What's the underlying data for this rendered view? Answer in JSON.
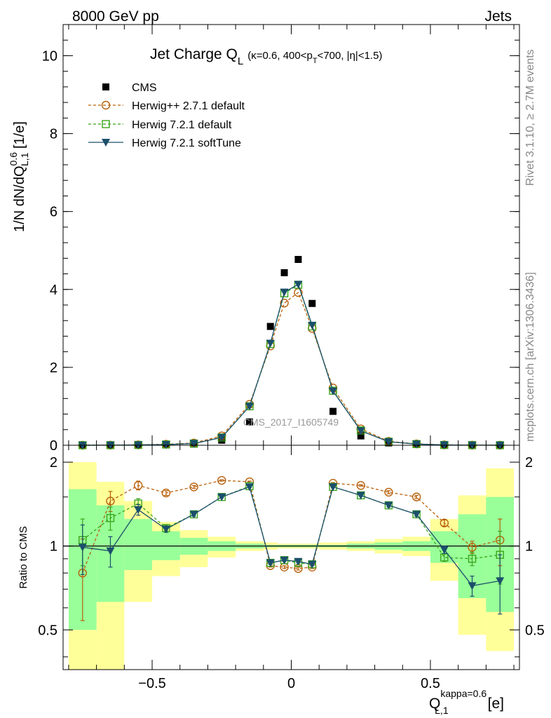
{
  "header": {
    "left": "8000 GeV pp",
    "right": "Jets"
  },
  "side_text": {
    "rivet": "Rivet 3.1.10, ≥ 2.7M events",
    "mcplots": "mcplots.cern.ch [arXiv:1306.3436]"
  },
  "colors": {
    "cms": "#000000",
    "herwigpp": "#b8600b",
    "herwig721": "#3aa41a",
    "softtune": "#1b4f6b",
    "band_yellow": "#ffff99",
    "band_green": "#99ff99"
  },
  "chart_data": [
    {
      "type": "line",
      "title": "Jet Charge Q",
      "title_sub": "L",
      "title_extra": "(κ=0.6, 400<p",
      "title_extra_sub": "T",
      "title_extra_end": "<700, |η|<1.5)",
      "ylabel_main": "1/N dN/dQ",
      "ylabel_sup": "0.6",
      "ylabel_sub": "L,1",
      "ylabel_unit": " [1/e]",
      "watermark": "CMS_2017_I1605749",
      "xlim": [
        -0.82,
        0.82
      ],
      "ylim": [
        0,
        10.8
      ],
      "yticks": [
        0,
        2,
        4,
        6,
        8,
        10
      ],
      "x": [
        -0.75,
        -0.65,
        -0.55,
        -0.45,
        -0.35,
        -0.25,
        -0.15,
        -0.075,
        -0.025,
        0.025,
        0.075,
        0.15,
        0.25,
        0.35,
        0.45,
        0.55,
        0.65,
        0.75
      ],
      "series": [
        {
          "name": "CMS",
          "values": [
            0.001,
            0.002,
            0.006,
            0.014,
            0.03,
            0.13,
            0.6,
            3.05,
            4.43,
            4.77,
            3.64,
            0.87,
            0.24,
            0.06,
            0.022,
            0.008,
            0.003,
            0.001
          ]
        },
        {
          "name": "Herwig++ 2.7.1 default",
          "values": [
            0.0008,
            0.003,
            0.01,
            0.025,
            0.057,
            0.24,
            1.05,
            2.55,
            3.65,
            3.92,
            3.0,
            1.47,
            0.42,
            0.1,
            0.035,
            0.01,
            0.003,
            0.001
          ]
        },
        {
          "name": "Herwig 7.2.1 default",
          "values": [
            0.001,
            0.0026,
            0.0084,
            0.019,
            0.044,
            0.2,
            1.0,
            2.6,
            3.9,
            4.12,
            3.05,
            1.4,
            0.38,
            0.09,
            0.03,
            0.007,
            0.003,
            0.001
          ]
        },
        {
          "name": "Herwig 7.2.1 softTune",
          "values": [
            0.001,
            0.002,
            0.008,
            0.018,
            0.044,
            0.2,
            1.0,
            2.62,
            3.93,
            4.13,
            3.08,
            1.39,
            0.37,
            0.09,
            0.03,
            0.008,
            0.002,
            0.001
          ]
        }
      ]
    },
    {
      "type": "line",
      "ylabel": "Ratio to CMS",
      "xlabel_main": "Q",
      "xlabel_sup": "kappa=0.6",
      "xlabel_sub": "L,1",
      "xlabel_unit": "[e]",
      "xlim": [
        -0.82,
        0.82
      ],
      "ylim": [
        0.36,
        2.3
      ],
      "yticks": [
        0.5,
        1,
        2
      ],
      "xticks": [
        -0.5,
        0,
        0.5
      ],
      "xtick_labels": [
        "−0.5",
        "0",
        "0.5"
      ],
      "bins": [
        -0.8,
        -0.7,
        -0.6,
        -0.5,
        -0.4,
        -0.3,
        -0.2,
        -0.1,
        -0.05,
        0.0,
        0.05,
        0.1,
        0.2,
        0.3,
        0.4,
        0.5,
        0.6,
        0.7,
        0.8
      ],
      "band_yellow": [
        [
          0.36,
          2.0
        ],
        [
          0.36,
          1.7
        ],
        [
          0.63,
          1.45
        ],
        [
          0.78,
          1.22
        ],
        [
          0.84,
          1.14
        ],
        [
          0.91,
          1.08
        ],
        [
          0.96,
          1.04
        ],
        [
          0.97,
          1.03
        ],
        [
          0.98,
          1.02
        ],
        [
          0.98,
          1.02
        ],
        [
          0.98,
          1.02
        ],
        [
          0.97,
          1.03
        ],
        [
          0.96,
          1.04
        ],
        [
          0.94,
          1.06
        ],
        [
          0.92,
          1.08
        ],
        [
          0.75,
          1.25
        ],
        [
          0.48,
          1.52
        ],
        [
          0.42,
          1.9
        ]
      ],
      "band_green": [
        [
          0.5,
          1.6
        ],
        [
          0.63,
          1.4
        ],
        [
          0.82,
          1.25
        ],
        [
          0.89,
          1.13
        ],
        [
          0.93,
          1.07
        ],
        [
          0.96,
          1.04
        ],
        [
          0.98,
          1.02
        ],
        [
          0.99,
          1.01
        ],
        [
          0.99,
          1.01
        ],
        [
          0.99,
          1.01
        ],
        [
          0.99,
          1.01
        ],
        [
          0.99,
          1.01
        ],
        [
          0.98,
          1.02
        ],
        [
          0.97,
          1.03
        ],
        [
          0.96,
          1.04
        ],
        [
          0.87,
          1.13
        ],
        [
          0.65,
          1.3
        ],
        [
          0.58,
          1.5
        ]
      ],
      "x": [
        -0.75,
        -0.65,
        -0.55,
        -0.45,
        -0.35,
        -0.25,
        -0.15,
        -0.075,
        -0.025,
        0.025,
        0.075,
        0.15,
        0.25,
        0.35,
        0.45,
        0.55,
        0.65,
        0.75
      ],
      "series": [
        {
          "name": "Herwig++ 2.7.1 default",
          "values": [
            0.8,
            1.45,
            1.65,
            1.55,
            1.63,
            1.72,
            1.7,
            0.85,
            0.84,
            0.83,
            0.84,
            1.68,
            1.65,
            1.56,
            1.5,
            1.21,
            0.99,
            1.05
          ],
          "err": [
            0.26,
            0.12,
            0.06,
            0.03,
            0.02,
            0.01,
            0.01,
            0.01,
            0.01,
            0.01,
            0.01,
            0.01,
            0.01,
            0.02,
            0.02,
            0.03,
            0.05,
            0.2
          ]
        },
        {
          "name": "Herwig 7.2.1 default",
          "values": [
            1.05,
            1.26,
            1.42,
            1.16,
            1.3,
            1.5,
            1.64,
            0.87,
            0.89,
            0.87,
            0.86,
            1.63,
            1.52,
            1.4,
            1.3,
            0.91,
            0.9,
            0.93
          ],
          "err": [
            0.2,
            0.12,
            0.06,
            0.03,
            0.02,
            0.01,
            0.01,
            0.01,
            0.01,
            0.01,
            0.01,
            0.01,
            0.01,
            0.02,
            0.02,
            0.03,
            0.05,
            0.2
          ]
        },
        {
          "name": "Herwig 7.2.1 softTune",
          "values": [
            0.99,
            0.96,
            1.35,
            1.15,
            1.3,
            1.5,
            1.63,
            0.87,
            0.89,
            0.88,
            0.86,
            1.63,
            1.52,
            1.4,
            1.3,
            0.97,
            0.72,
            0.75
          ],
          "err": [
            0.2,
            0.12,
            0.06,
            0.03,
            0.02,
            0.01,
            0.01,
            0.01,
            0.01,
            0.01,
            0.01,
            0.01,
            0.01,
            0.02,
            0.02,
            0.03,
            0.06,
            0.18
          ]
        }
      ]
    }
  ]
}
